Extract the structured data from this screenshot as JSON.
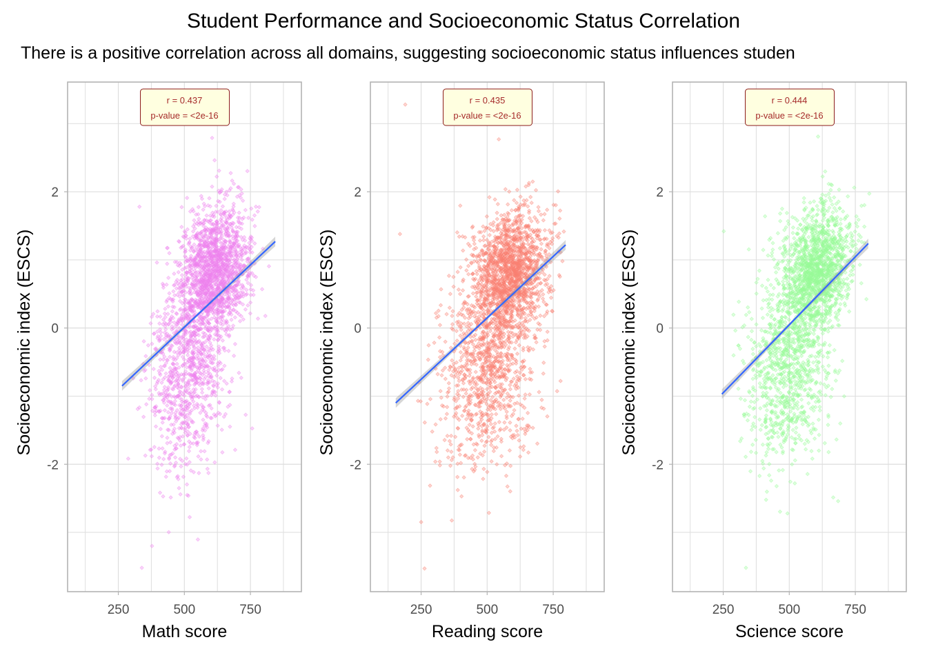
{
  "title": "Student Performance and Socioeconomic Status Correlation",
  "subtitle": "There is a positive correlation across all domains, suggesting socioeconomic status influences studen",
  "colors": {
    "regression_line": "#3366ff",
    "confidence_band": "#999999",
    "grid": "#dedede",
    "panel_border": "#b3b3b3",
    "annotation_fill": "#ffffe0",
    "annotation_border": "#8b1a1a",
    "annotation_text": "#a52a2a"
  },
  "chart_data": [
    {
      "type": "scatter",
      "id": "math",
      "xlabel": "Math score",
      "ylabel": "Socioeconomic index (ESCS)",
      "xlim": [
        58,
        943
      ],
      "ylim": [
        -3.87,
        3.61
      ],
      "xticks": [
        250,
        500,
        750
      ],
      "xticks_minor": [
        125,
        375,
        625,
        875
      ],
      "yticks": [
        -2,
        0,
        2
      ],
      "yticks_minor": [
        -3,
        -1,
        1,
        3
      ],
      "grid": true,
      "point_color": "#ee82ee",
      "annotation": {
        "r_label": "r = 0.437",
        "p_label": "p-value = <2e-16",
        "position": "top-center"
      },
      "regression": {
        "x": [
          264,
          844
        ],
        "y": [
          -0.85,
          1.27
        ]
      },
      "notable_points": [
        {
          "x": 339,
          "y": -3.52
        },
        {
          "x": 605,
          "y": 2.79
        },
        {
          "x": 330,
          "y": 1.78
        }
      ],
      "distribution": {
        "n_rendered": 2600,
        "seed": 11,
        "x_range": [
          264,
          844
        ],
        "components": [
          {
            "weight": 0.6,
            "x_mean": 615,
            "x_sd": 65,
            "y_mean": 0.85,
            "y_sd": 0.45,
            "slope": 0.0015
          },
          {
            "weight": 0.4,
            "x_mean": 520,
            "x_sd": 75,
            "y_mean": -0.55,
            "y_sd": 0.75,
            "slope": 0.0015
          }
        ]
      }
    },
    {
      "type": "scatter",
      "id": "reading",
      "xlabel": "Reading score",
      "ylabel": "Socioeconomic index (ESCS)",
      "xlim": [
        58,
        943
      ],
      "ylim": [
        -3.87,
        3.61
      ],
      "xticks": [
        250,
        500,
        750
      ],
      "xticks_minor": [
        125,
        375,
        625,
        875
      ],
      "yticks": [
        -2,
        0,
        2
      ],
      "yticks_minor": [
        -3,
        -1,
        1,
        3
      ],
      "grid": true,
      "point_color": "#fa8072",
      "annotation": {
        "r_label": "r = 0.435",
        "p_label": "p-value = <2e-16",
        "position": "top-center"
      },
      "regression": {
        "x": [
          154,
          797
        ],
        "y": [
          -1.1,
          1.22
        ]
      },
      "notable_points": [
        {
          "x": 190,
          "y": 3.28
        },
        {
          "x": 544,
          "y": 2.77
        },
        {
          "x": 263,
          "y": -3.53
        },
        {
          "x": 170,
          "y": 1.38
        }
      ],
      "distribution": {
        "n_rendered": 2600,
        "seed": 23,
        "x_range": [
          154,
          800
        ],
        "components": [
          {
            "weight": 0.6,
            "x_mean": 590,
            "x_sd": 70,
            "y_mean": 0.8,
            "y_sd": 0.45,
            "slope": 0.0015
          },
          {
            "weight": 0.4,
            "x_mean": 500,
            "x_sd": 90,
            "y_mean": -0.6,
            "y_sd": 0.75,
            "slope": 0.0015
          }
        ]
      }
    },
    {
      "type": "scatter",
      "id": "science",
      "xlabel": "Science score",
      "ylabel": "Socioeconomic index (ESCS)",
      "xlim": [
        58,
        943
      ],
      "ylim": [
        -3.87,
        3.61
      ],
      "xticks": [
        250,
        500,
        750
      ],
      "xticks_minor": [
        125,
        375,
        625,
        875
      ],
      "yticks": [
        -2,
        0,
        2
      ],
      "yticks_minor": [
        -3,
        -1,
        1,
        3
      ],
      "grid": true,
      "point_color": "#98fb98",
      "annotation": {
        "r_label": "r = 0.444",
        "p_label": "p-value = <2e-16",
        "position": "top-center"
      },
      "regression": {
        "x": [
          245,
          799
        ],
        "y": [
          -0.97,
          1.24
        ]
      },
      "notable_points": [
        {
          "x": 336,
          "y": -3.52
        },
        {
          "x": 609,
          "y": 2.81
        },
        {
          "x": 252,
          "y": 1.42
        }
      ],
      "distribution": {
        "n_rendered": 2600,
        "seed": 37,
        "x_range": [
          245,
          805
        ],
        "components": [
          {
            "weight": 0.6,
            "x_mean": 605,
            "x_sd": 65,
            "y_mean": 0.85,
            "y_sd": 0.45,
            "slope": 0.0015
          },
          {
            "weight": 0.4,
            "x_mean": 500,
            "x_sd": 78,
            "y_mean": -0.55,
            "y_sd": 0.75,
            "slope": 0.0015
          }
        ]
      }
    }
  ]
}
